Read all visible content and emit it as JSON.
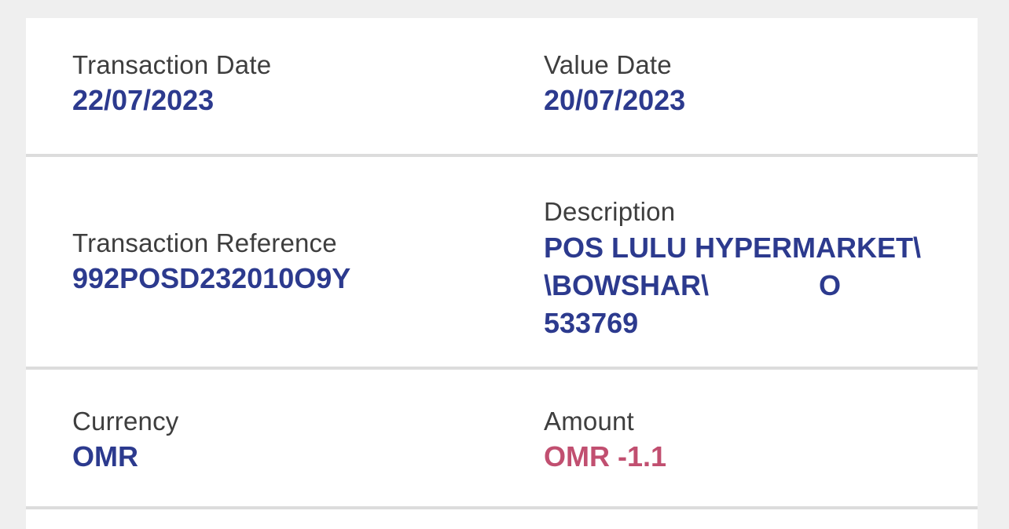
{
  "theme": {
    "page_background": "#efefef",
    "card_background": "#ffffff",
    "divider_color": "#dcdcdc",
    "label_color": "#3e3e3e",
    "value_color": "#2c3a8e",
    "amount_negative_color": "#c14f70"
  },
  "transaction_detail": {
    "transaction_date": {
      "label": "Transaction Date",
      "value": "22/07/2023"
    },
    "value_date": {
      "label": "Value Date",
      "value": "20/07/2023"
    },
    "transaction_reference": {
      "label": "Transaction Reference",
      "value": "992POSD232010O9Y"
    },
    "description": {
      "label": "Description",
      "value": "POS LULU HYPERMARKET\\\\BOWSHAR\\              O 533769",
      "lines": [
        "POS LULU HYPERMARKET\\",
        "\\BOWSHAR\\              O",
        "533769"
      ]
    },
    "currency": {
      "label": "Currency",
      "value": "OMR"
    },
    "amount": {
      "label": "Amount",
      "value": "OMR -1.1"
    }
  }
}
